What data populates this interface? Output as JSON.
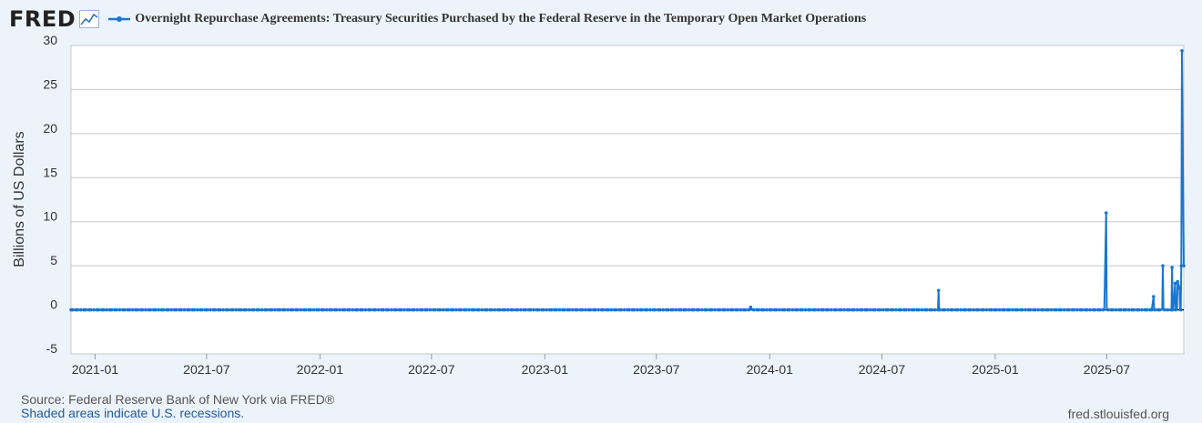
{
  "header": {
    "logo_text": "FRED",
    "logo_icon": "line-chart-icon",
    "series_title": "Overnight Repurchase Agreements: Treasury Securities Purchased by the Federal Reserve in the Temporary Open Market Operations"
  },
  "colors": {
    "series": "#1976d2",
    "background": "#edf3fa",
    "plot": "#ffffff",
    "grid": "#c8c8c8",
    "zero_line": "#000000"
  },
  "footer": {
    "source": "Source: Federal Reserve Bank of New York via FRED®",
    "recessions_note": "Shaded areas indicate U.S. recessions.",
    "site": "fred.stlouisfed.org"
  },
  "chart_data": {
    "type": "line",
    "title": "Overnight Repurchase Agreements: Treasury Securities Purchased by the Federal Reserve in the Temporary Open Market Operations",
    "xlabel": "",
    "ylabel": "Billions of US Dollars",
    "ylim": [
      -5,
      30
    ],
    "yticks": [
      -5,
      0,
      5,
      10,
      15,
      20,
      25,
      30
    ],
    "xlim": [
      "2020-11-23",
      "2025-11-03"
    ],
    "xticks": [
      "2021-01",
      "2021-07",
      "2022-01",
      "2022-07",
      "2023-01",
      "2023-07",
      "2024-01",
      "2024-07",
      "2025-01",
      "2025-07"
    ],
    "grid": true,
    "legend": "top-left",
    "baseline": 0,
    "series": [
      {
        "points": [
          [
            "2023-12-01",
            0.3
          ],
          [
            "2024-10-01",
            2.2
          ],
          [
            "2025-06-30",
            11.0
          ],
          [
            "2025-09-15",
            1.5
          ],
          [
            "2025-09-30",
            5.0
          ],
          [
            "2025-10-15",
            4.8
          ],
          [
            "2025-10-20",
            3.0
          ],
          [
            "2025-10-24",
            3.2
          ],
          [
            "2025-10-27",
            2.5
          ],
          [
            "2025-10-30",
            5.0
          ],
          [
            "2025-10-31",
            29.4
          ],
          [
            "2025-11-03",
            5.0
          ]
        ]
      }
    ]
  }
}
